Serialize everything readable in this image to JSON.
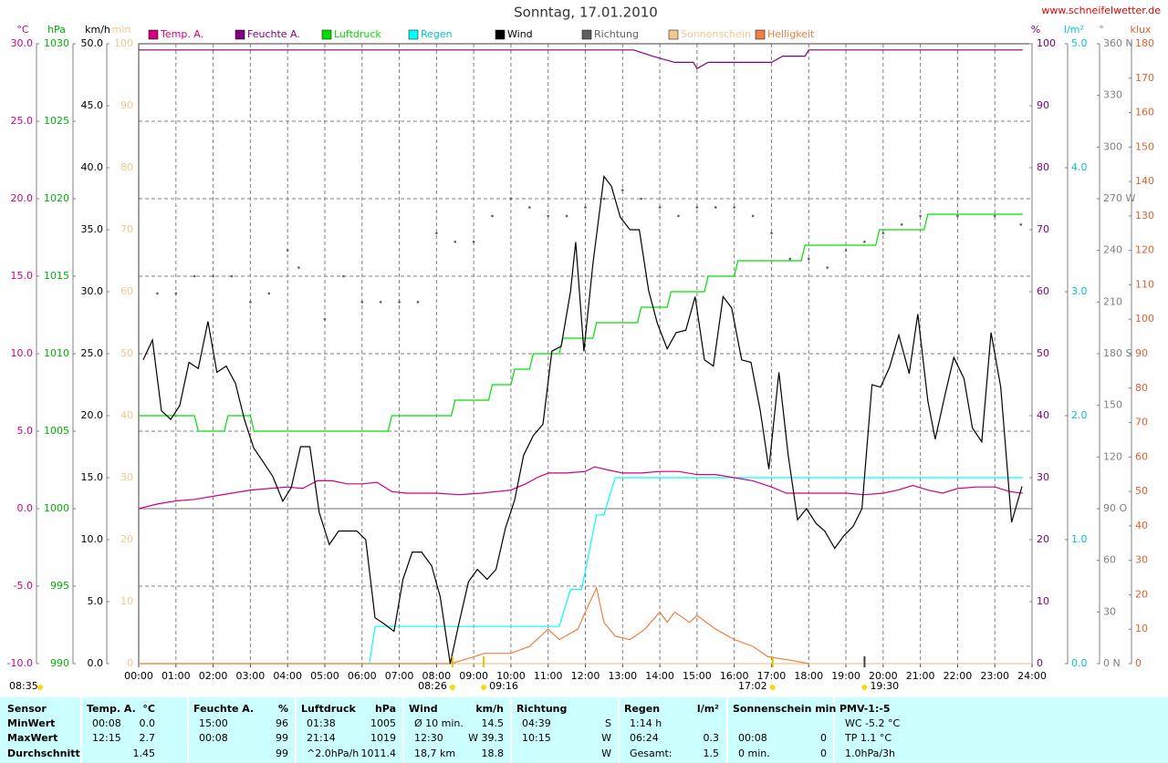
{
  "chart_data": {
    "type": "line",
    "title": "Sonntag, 17.01.2010",
    "site": "www.schneifelwetter.de",
    "xlim": [
      0,
      24
    ],
    "xticks": [
      {
        "value": 0,
        "label": "00:00"
      },
      {
        "value": 1,
        "label": "01:00"
      },
      {
        "value": 2,
        "label": "02:00"
      },
      {
        "value": 3,
        "label": "03:00"
      },
      {
        "value": 4,
        "label": "04:00"
      },
      {
        "value": 5,
        "label": "05:00"
      },
      {
        "value": 6,
        "label": "06:00"
      },
      {
        "value": 7,
        "label": "07:00"
      },
      {
        "value": 8,
        "label": "08:00"
      },
      {
        "value": 9,
        "label": "09:00"
      },
      {
        "value": 10,
        "label": "10:00"
      },
      {
        "value": 11,
        "label": "11:00"
      },
      {
        "value": 12,
        "label": "12:00"
      },
      {
        "value": 13,
        "label": "13:00"
      },
      {
        "value": 14,
        "label": "14:00"
      },
      {
        "value": 15,
        "label": "15:00"
      },
      {
        "value": 16,
        "label": "16:00"
      },
      {
        "value": 17,
        "label": "17:00"
      },
      {
        "value": 18,
        "label": "18:00"
      },
      {
        "value": 19,
        "label": "19:00"
      },
      {
        "value": 20,
        "label": "20:00"
      },
      {
        "value": 21,
        "label": "21:00"
      },
      {
        "value": 22,
        "label": "22:00"
      },
      {
        "value": 23,
        "label": "23:00"
      },
      {
        "value": 24,
        "label": "24:00"
      }
    ],
    "grid": true,
    "grid_axis": "temp",
    "axes": {
      "temp": {
        "label": "°C",
        "color": "#d0007f",
        "lim": [
          -10,
          30
        ],
        "ticks": [
          {
            "value": -10,
            "label": "-10.0"
          },
          {
            "value": -5,
            "label": "-5.0"
          },
          {
            "value": 0,
            "label": "0.0"
          },
          {
            "value": 5,
            "label": "5.0"
          },
          {
            "value": 10,
            "label": "10.0"
          },
          {
            "value": 15,
            "label": "15.0"
          },
          {
            "value": 20,
            "label": "20.0"
          },
          {
            "value": 25,
            "label": "25.0"
          },
          {
            "value": 30,
            "label": "30.0"
          }
        ]
      },
      "pressure": {
        "label": "hPa",
        "color": "#00b000",
        "lim": [
          990,
          1030
        ],
        "ticks": [
          990,
          995,
          1000,
          1005,
          1010,
          1015,
          1020,
          1025,
          1030
        ]
      },
      "wind": {
        "label": "km/h",
        "color": "#000000",
        "lim": [
          0,
          50
        ],
        "ticks": [
          {
            "value": 0,
            "label": "0.0"
          },
          {
            "value": 5,
            "label": "5.0"
          },
          {
            "value": 10,
            "label": "10.0"
          },
          {
            "value": 15,
            "label": "15.0"
          },
          {
            "value": 20,
            "label": "20.0"
          },
          {
            "value": 25,
            "label": "25.0"
          },
          {
            "value": 30,
            "label": "30.0"
          },
          {
            "value": 35,
            "label": "35.0"
          },
          {
            "value": 40,
            "label": "40.0"
          },
          {
            "value": 45,
            "label": "45.0"
          },
          {
            "value": 50,
            "label": "50.0"
          }
        ]
      },
      "sun": {
        "label": "min",
        "color": "#f0c890",
        "lim": [
          0,
          100
        ],
        "ticks": [
          0,
          10,
          20,
          30,
          40,
          50,
          60,
          70,
          80,
          90,
          100
        ]
      },
      "humidity": {
        "label": "%",
        "color": "#800080",
        "lim": [
          0,
          100
        ],
        "ticks": [
          0,
          10,
          20,
          30,
          40,
          50,
          60,
          70,
          80,
          90,
          100
        ]
      },
      "rain": {
        "label": "l/m²",
        "color": "#00c8c8",
        "lim": [
          0,
          5
        ],
        "ticks": [
          {
            "value": 0,
            "label": "0.0"
          },
          {
            "value": 1,
            "label": "1.0"
          },
          {
            "value": 2,
            "label": "2.0"
          },
          {
            "value": 3,
            "label": "3.0"
          },
          {
            "value": 4,
            "label": "4.0"
          },
          {
            "value": 5,
            "label": "5.0"
          }
        ]
      },
      "direction": {
        "label": "°",
        "color": "#808080",
        "lim": [
          0,
          360
        ],
        "ticks": [
          {
            "value": 0,
            "label": "0 N"
          },
          30,
          60,
          {
            "value": 90,
            "label": "90 O"
          },
          120,
          150,
          {
            "value": 180,
            "label": "180 S"
          },
          210,
          240,
          {
            "value": 270,
            "label": "270 W"
          },
          300,
          330,
          {
            "value": 360,
            "label": "360 N"
          }
        ]
      },
      "klux": {
        "label": "klux",
        "color": "#e06030",
        "lim": [
          0,
          180
        ],
        "ticks": [
          0,
          10,
          20,
          30,
          40,
          50,
          60,
          70,
          80,
          90,
          100,
          110,
          120,
          130,
          140,
          150,
          160,
          170,
          180
        ]
      }
    },
    "series": [
      {
        "name": "Temp. A.",
        "color": "#d0007f",
        "axis": "temp",
        "x": [
          0,
          0.5,
          1,
          1.5,
          2,
          2.5,
          3,
          3.5,
          4,
          4.4,
          4.8,
          5.2,
          5.6,
          6,
          6.4,
          6.8,
          7.2,
          8,
          8.6,
          9.2,
          9.6,
          10,
          10.4,
          10.7,
          11,
          11.5,
          12,
          12.25,
          12.6,
          13,
          13.5,
          14,
          14.5,
          15,
          15.5,
          16,
          16.5,
          17,
          17.4,
          18,
          18.5,
          19,
          19.5,
          20,
          20.4,
          20.8,
          21.2,
          21.6,
          22,
          22.5,
          23,
          23.4,
          23.75
        ],
        "values": [
          0.0,
          0.3,
          0.5,
          0.6,
          0.8,
          1.0,
          1.2,
          1.3,
          1.4,
          1.3,
          1.8,
          1.8,
          1.6,
          1.6,
          1.7,
          1.1,
          1.0,
          1.0,
          0.9,
          1.0,
          1.1,
          1.2,
          1.6,
          2.0,
          2.3,
          2.3,
          2.4,
          2.7,
          2.5,
          2.3,
          2.3,
          2.4,
          2.4,
          2.2,
          2.2,
          2.0,
          1.8,
          1.4,
          1.0,
          1.0,
          1.0,
          1.0,
          0.9,
          1.0,
          1.2,
          1.5,
          1.2,
          1.0,
          1.3,
          1.4,
          1.4,
          1.1,
          1.0
        ]
      },
      {
        "name": "Feuchte A.",
        "color": "#800080",
        "axis": "humidity",
        "x": [
          0,
          13.3,
          13.8,
          14.4,
          14.9,
          15.0,
          15.3,
          17.0,
          17.3,
          17.9,
          18.0,
          23.75
        ],
        "values": [
          99,
          99,
          98,
          97,
          97,
          96,
          97,
          97,
          98,
          98,
          99,
          99
        ]
      },
      {
        "name": "Luftdruck",
        "color": "#00e000",
        "axis": "pressure",
        "x": [
          0,
          1.5,
          1.6,
          2.3,
          2.4,
          3.0,
          3.1,
          6.7,
          6.8,
          8.4,
          8.5,
          9.4,
          9.5,
          10.0,
          10.1,
          10.5,
          10.6,
          11.3,
          11.4,
          12.2,
          12.3,
          13.4,
          13.5,
          14.2,
          14.3,
          15.2,
          15.3,
          16.0,
          16.1,
          17.8,
          17.9,
          19.8,
          19.9,
          21.1,
          21.2,
          23.75
        ],
        "values": [
          1006,
          1006,
          1005,
          1005,
          1006,
          1006,
          1005,
          1005,
          1006,
          1006,
          1007,
          1007,
          1008,
          1008,
          1009,
          1009,
          1010,
          1010,
          1011,
          1011,
          1012,
          1012,
          1013,
          1013,
          1014,
          1014,
          1015,
          1015,
          1016,
          1016,
          1017,
          1017,
          1018,
          1018,
          1019,
          1019
        ]
      },
      {
        "name": "Regen",
        "color": "#00ffff",
        "axis": "rain",
        "x": [
          6.2,
          6.35,
          11.3,
          11.6,
          11.9,
          12.3,
          12.5,
          12.8,
          23.75
        ],
        "values": [
          0,
          0.3,
          0.3,
          0.6,
          0.6,
          1.2,
          1.2,
          1.5,
          1.5
        ]
      },
      {
        "name": "Wind",
        "color": "#000000",
        "axis": "wind",
        "x": [
          0.12,
          0.37,
          0.61,
          0.86,
          1.1,
          1.35,
          1.6,
          1.86,
          2.1,
          2.35,
          2.6,
          2.84,
          3.09,
          3.36,
          3.6,
          3.87,
          4.1,
          4.35,
          4.6,
          4.85,
          5.12,
          5.37,
          5.6,
          5.86,
          6.1,
          6.35,
          6.6,
          6.86,
          7.1,
          7.35,
          7.6,
          7.87,
          8.1,
          8.37,
          8.6,
          8.86,
          9.1,
          9.36,
          9.6,
          9.85,
          10.1,
          10.34,
          10.6,
          10.86,
          11.1,
          11.35,
          11.6,
          11.74,
          11.96,
          12.2,
          12.5,
          12.7,
          12.94,
          13.2,
          13.45,
          13.7,
          13.94,
          14.2,
          14.44,
          14.7,
          14.95,
          15.2,
          15.44,
          15.7,
          15.93,
          16.2,
          16.45,
          16.7,
          16.93,
          17.2,
          17.45,
          17.7,
          17.94,
          18.2,
          18.43,
          18.7,
          18.94,
          19.2,
          19.43,
          19.7,
          19.93,
          20.17,
          20.42,
          20.7,
          20.93,
          21.2,
          21.4,
          21.67,
          21.9,
          22.17,
          22.4,
          22.65,
          22.9,
          23.16,
          23.45,
          23.73
        ],
        "values": [
          24.5,
          26.1,
          20.4,
          19.7,
          20.8,
          24.3,
          23.8,
          27.6,
          23.5,
          24.0,
          22.6,
          19.7,
          17.4,
          16.2,
          15.1,
          13.1,
          14.2,
          17.5,
          17.5,
          12.2,
          9.6,
          10.7,
          10.7,
          10.7,
          10.0,
          3.7,
          3.2,
          2.6,
          6.8,
          9.0,
          9.0,
          7.9,
          5.4,
          0,
          3.2,
          6.6,
          7.6,
          6.8,
          7.6,
          10.9,
          13.2,
          16.8,
          18.4,
          19.3,
          25.2,
          25.6,
          30.0,
          34.0,
          25.2,
          32.2,
          39.3,
          38.5,
          36.0,
          35.0,
          35.0,
          30.1,
          27.4,
          25.4,
          26.7,
          26.9,
          29.6,
          24.5,
          24.0,
          29.6,
          28.7,
          24.5,
          24.3,
          20.4,
          15.7,
          23.5,
          16.8,
          11.6,
          12.5,
          11.3,
          10.7,
          9.3,
          10.3,
          11.1,
          12.5,
          22.5,
          22.3,
          23.9,
          26.5,
          23.4,
          28.2,
          21.2,
          18.1,
          21.8,
          24.7,
          23.0,
          19.0,
          17.9,
          26.7,
          22.3,
          11.4,
          14.3
        ]
      },
      {
        "name": "Richtung",
        "color": "#606060",
        "axis": "direction",
        "style": "dots",
        "x": [
          0.5,
          1,
          1.5,
          2,
          2.5,
          3,
          3.5,
          4,
          4.3,
          5,
          5.5,
          6,
          6.5,
          7,
          7.5,
          8,
          8.5,
          9,
          9.5,
          10,
          10.5,
          11,
          11.5,
          12,
          12.5,
          13,
          13.5,
          14,
          14.5,
          15,
          15.5,
          16,
          16.5,
          17,
          17.5,
          18,
          18.5,
          19,
          19.5,
          20,
          20.5,
          21,
          22,
          23,
          23.7
        ],
        "values": [
          215,
          215,
          225,
          225,
          225,
          210,
          215,
          240,
          230,
          200,
          225,
          210,
          210,
          210,
          210,
          250,
          245,
          245,
          260,
          270,
          265,
          260,
          260,
          265,
          270,
          275,
          270,
          265,
          260,
          265,
          265,
          265,
          260,
          250,
          235,
          235,
          230,
          240,
          245,
          250,
          255,
          260,
          260,
          260,
          255
        ]
      },
      {
        "name": "Sonnenschein",
        "color": "#f0c890",
        "axis": "sun",
        "x": [
          0,
          24
        ],
        "values": [
          0,
          0
        ]
      },
      {
        "name": "Helligkeit",
        "color": "#f08040",
        "axis": "klux",
        "x": [
          0,
          8.4,
          8.7,
          9.3,
          10.0,
          10.5,
          11.0,
          11.3,
          11.8,
          12.0,
          12.3,
          12.5,
          12.8,
          13.2,
          13.6,
          14.0,
          14.2,
          14.4,
          14.8,
          15.0,
          15.5,
          16.0,
          16.5,
          16.9,
          17.5,
          18.0
        ],
        "values": [
          0,
          0,
          1,
          3,
          3,
          5,
          10,
          7,
          10,
          15,
          22,
          12,
          8,
          7,
          10,
          15,
          12,
          15,
          12,
          14,
          10,
          7,
          5,
          2,
          1,
          0
        ]
      }
    ],
    "corner_note": "08:35",
    "annotations": [
      {
        "text": "08:26",
        "x": 8.43
      },
      {
        "text": "09:16",
        "x": 9.27
      },
      {
        "text": "17:02",
        "x": 17.03
      },
      {
        "text": "19:30",
        "x": 19.5
      }
    ]
  },
  "table": {
    "header": {
      "label": "Sensor",
      "cells": [
        {
          "left": "Temp. A.",
          "right": "°C"
        },
        {
          "left": "Feuchte A.",
          "right": "%"
        },
        {
          "left": "Luftdruck",
          "right": "hPa"
        },
        {
          "left": "Wind",
          "right": "km/h"
        },
        {
          "left": "Richtung"
        },
        {
          "left": "Regen",
          "right": "l/m²"
        },
        {
          "left": "Sonnenschein min"
        },
        {
          "left": "PMV-1:-5"
        }
      ]
    },
    "rows": [
      {
        "label": "MinWert",
        "cells": [
          {
            "left": "00:08",
            "right": "0.0"
          },
          {
            "left": "15:00",
            "right": "96"
          },
          {
            "left": "01:38",
            "right": "1005"
          },
          {
            "left": "Ø 10 min.",
            "right": "14.5"
          },
          {
            "left": "04:39",
            "right": "S"
          },
          {
            "left": "1:14 h"
          },
          {},
          {
            "left": "WC -5.2 °C"
          }
        ]
      },
      {
        "label": "MaxWert",
        "cells": [
          {
            "left": "12:15",
            "right": "2.7"
          },
          {
            "left": "00:08",
            "right": "99"
          },
          {
            "left": "21:14",
            "right": "1019"
          },
          {
            "left": "12:30",
            "right": "W 39.3"
          },
          {
            "left": "10:15",
            "right": "W"
          },
          {
            "left": "06:24",
            "right": "0.3"
          },
          {
            "left": "00:08",
            "right": "0"
          },
          {
            "left": "TP 1.1 °C"
          }
        ]
      },
      {
        "label": "Durchschnitt",
        "cells": [
          {
            "right": "1.45"
          },
          {
            "right": "99"
          },
          {
            "left": "^2.0hPa/h",
            "right": "1011.4"
          },
          {
            "left": "18,7 km",
            "right": "18.8"
          },
          {
            "right": "W"
          },
          {
            "left": "Gesamt:",
            "right": "1.5"
          },
          {
            "left": "0 min.",
            "right": "0"
          },
          {
            "left": "1.0hPa/3h"
          }
        ]
      }
    ]
  }
}
